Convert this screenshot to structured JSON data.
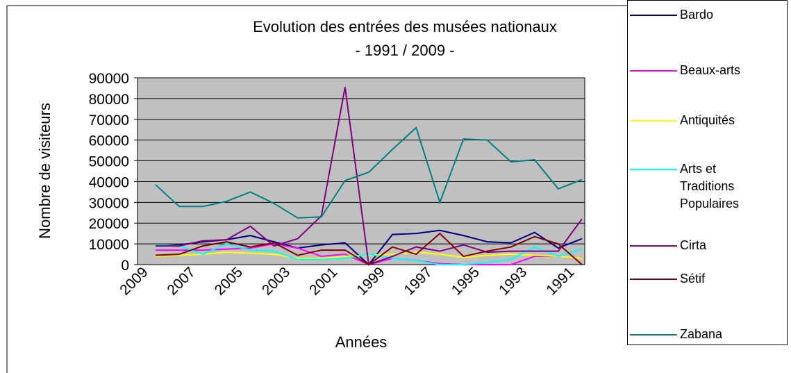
{
  "chart_data": {
    "type": "line",
    "title": "Evolution des entrées des musées nationaux",
    "subtitle": "- 1991 / 2009 -",
    "x_label": "Années",
    "y_label": "Nombre de visiteurs",
    "categories": [
      "2009",
      null,
      "2007",
      null,
      "2005",
      null,
      "2003",
      null,
      "2001",
      null,
      "1999",
      null,
      "1997",
      null,
      "1995",
      null,
      "1993",
      null,
      "1991"
    ],
    "ylim": [
      0,
      90000
    ],
    "yticks": [
      0,
      10000,
      20000,
      30000,
      40000,
      50000,
      60000,
      70000,
      80000,
      90000
    ],
    "grid": true,
    "legend": "right",
    "plot_color": "#c0c0c0",
    "series": [
      {
        "name": "Bardo",
        "color": "#000080",
        "values": [
          9000,
          9500,
          11000,
          12000,
          14000,
          11000,
          8000,
          9500,
          10500,
          0,
          14500,
          15000,
          16500,
          14000,
          11000,
          10500,
          15500,
          8000,
          12500
        ]
      },
      {
        "name": "Beaux-arts",
        "color": "#ff00ff",
        "values": [
          7000,
          7000,
          7000,
          7500,
          8000,
          10000,
          8000,
          4000,
          5000,
          0,
          3000,
          2000,
          500,
          0,
          0,
          0,
          4000,
          4000,
          3000
        ]
      },
      {
        "name": "Antiquités",
        "color": "#ffff00",
        "values": [
          4000,
          4500,
          5000,
          6000,
          5500,
          5000,
          3000,
          3000,
          4000,
          4500,
          5000,
          6000,
          5000,
          3500,
          4500,
          5000,
          4500,
          4000,
          3000
        ]
      },
      {
        "name": "Arts et Traditions Populaires",
        "color": "#00ffff",
        "values": [
          9500,
          9000,
          5000,
          10000,
          7000,
          6500,
          2500,
          2500,
          3000,
          5000,
          3000,
          2000,
          0,
          0,
          1000,
          2500,
          8500,
          4000,
          7500
        ]
      },
      {
        "name": "Cirta",
        "color": "#800080",
        "values": [
          9000,
          9000,
          11500,
          12000,
          18500,
          9000,
          12500,
          23500,
          85500,
          0,
          4000,
          8500,
          6500,
          9500,
          6000,
          6500,
          6500,
          6500,
          22000
        ]
      },
      {
        "name": "Sétif",
        "color": "#800000",
        "values": [
          4500,
          5000,
          9000,
          11000,
          8500,
          10500,
          4500,
          7000,
          7000,
          0,
          8500,
          5000,
          15000,
          4000,
          6500,
          8500,
          13500,
          10000,
          0
        ]
      },
      {
        "name": "Zabana",
        "color": "#008080",
        "values": [
          38500,
          28000,
          28000,
          30500,
          35000,
          29500,
          22500,
          23000,
          40500,
          44500,
          55500,
          66000,
          30000,
          60500,
          60000,
          49500,
          50500,
          36500,
          41000
        ]
      }
    ]
  }
}
